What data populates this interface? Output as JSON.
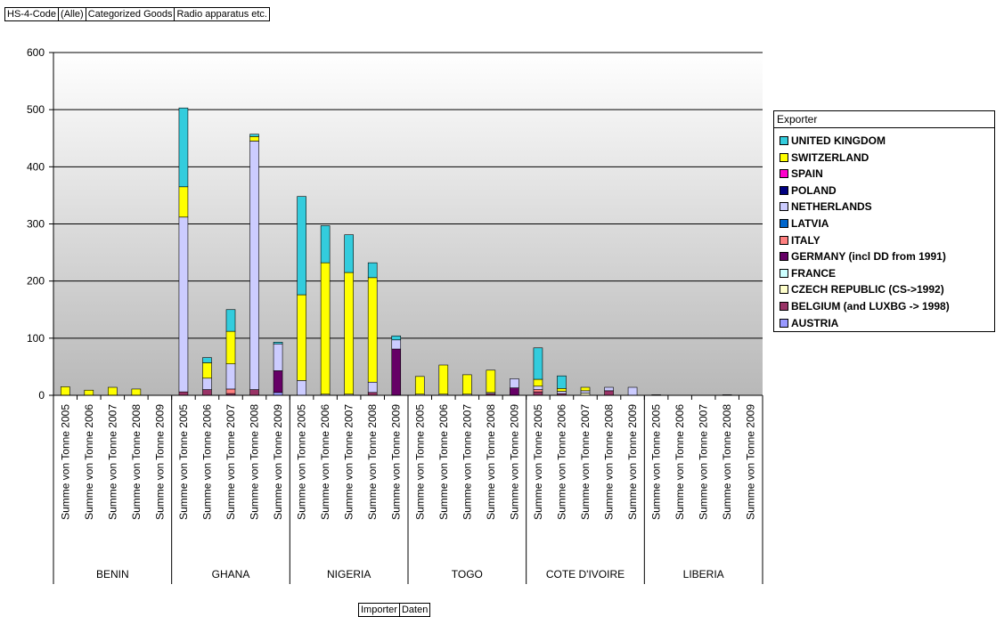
{
  "filters": [
    "HS-4-Code",
    "(Alle)",
    "Categorized Goods",
    "Radio apparatus etc."
  ],
  "bottom_buttons": [
    "Importer",
    "Daten"
  ],
  "legend": {
    "title": "Exporter",
    "items": [
      {
        "name": "UNITED KINGDOM",
        "color": "#33CCDD"
      },
      {
        "name": "SWITZERLAND",
        "color": "#FFFF00"
      },
      {
        "name": "SPAIN",
        "color": "#FF00CC"
      },
      {
        "name": "POLAND",
        "color": "#000080"
      },
      {
        "name": "NETHERLANDS",
        "color": "#CCCCFF"
      },
      {
        "name": "LATVIA",
        "color": "#0066CC"
      },
      {
        "name": "ITALY",
        "color": "#FF8080"
      },
      {
        "name": "GERMANY (incl DD from 1991)",
        "color": "#660066"
      },
      {
        "name": "FRANCE",
        "color": "#CCFFFF"
      },
      {
        "name": "CZECH REPUBLIC (CS->1992)",
        "color": "#FFFFCC"
      },
      {
        "name": "BELGIUM (and LUXBG -> 1998)",
        "color": "#993366"
      },
      {
        "name": "AUSTRIA",
        "color": "#9999FF"
      }
    ]
  },
  "chart_data": {
    "type": "bar",
    "stacked": true,
    "ylim": [
      0,
      600
    ],
    "yticks": [
      0,
      100,
      200,
      300,
      400,
      500,
      600
    ],
    "groups": [
      {
        "name": "BENIN",
        "labels": [
          "Summe von Tonne 2005",
          "Summe von Tonne 2006",
          "Summe von Tonne 2007",
          "Summe von Tonne 2008",
          "Summe von Tonne 2009"
        ]
      },
      {
        "name": "GHANA",
        "labels": [
          "Summe von Tonne 2005",
          "Summe von Tonne 2006",
          "Summe von Tonne 2007",
          "Summe von Tonne 2008",
          "Summe von Tonne 2009"
        ]
      },
      {
        "name": "NIGERIA",
        "labels": [
          "Summe von Tonne 2005",
          "Summe von Tonne 2006",
          "Summe von Tonne 2007",
          "Summe von Tonne 2008",
          "Summe von Tonne 2009"
        ]
      },
      {
        "name": "TOGO",
        "labels": [
          "Summe von Tonne 2005",
          "Summe von Tonne 2006",
          "Summe von Tonne 2007",
          "Summe von Tonne 2008",
          "Summe von Tonne 2009"
        ]
      },
      {
        "name": "COTE D'IVOIRE",
        "labels": [
          "Summe von Tonne 2005",
          "Summe von Tonne 2006",
          "Summe von Tonne 2007",
          "Summe von Tonne 2008",
          "Summe von Tonne 2009"
        ]
      },
      {
        "name": "LIBERIA",
        "labels": [
          "Summe von Tonne 2005",
          "Summe von Tonne 2006",
          "Summe von Tonne 2007",
          "Summe von Tonne 2008",
          "Summe von Tonne 2009"
        ]
      }
    ],
    "stack_order": [
      "AUSTRIA",
      "BELGIUM (and LUXBG -> 1998)",
      "CZECH REPUBLIC (CS->1992)",
      "FRANCE",
      "GERMANY (incl DD from 1991)",
      "ITALY",
      "LATVIA",
      "NETHERLANDS",
      "POLAND",
      "SPAIN",
      "SWITZERLAND",
      "UNITED KINGDOM"
    ],
    "bars": [
      {
        "AUSTRIA": 0,
        "BELGIUM (and LUXBG -> 1998)": 0,
        "CZECH REPUBLIC (CS->1992)": 0,
        "FRANCE": 0,
        "GERMANY (incl DD from 1991)": 0,
        "ITALY": 0,
        "LATVIA": 0,
        "NETHERLANDS": 0,
        "POLAND": 0,
        "SPAIN": 0,
        "SWITZERLAND": 15,
        "UNITED KINGDOM": 0
      },
      {
        "AUSTRIA": 0,
        "BELGIUM (and LUXBG -> 1998)": 0,
        "CZECH REPUBLIC (CS->1992)": 0,
        "FRANCE": 0,
        "GERMANY (incl DD from 1991)": 0,
        "ITALY": 0,
        "LATVIA": 0,
        "NETHERLANDS": 0,
        "POLAND": 0,
        "SPAIN": 0,
        "SWITZERLAND": 9,
        "UNITED KINGDOM": 0
      },
      {
        "AUSTRIA": 0,
        "BELGIUM (and LUXBG -> 1998)": 0,
        "CZECH REPUBLIC (CS->1992)": 0,
        "FRANCE": 0,
        "GERMANY (incl DD from 1991)": 0,
        "ITALY": 0,
        "LATVIA": 0,
        "NETHERLANDS": 0,
        "POLAND": 0,
        "SPAIN": 0,
        "SWITZERLAND": 14,
        "UNITED KINGDOM": 0
      },
      {
        "AUSTRIA": 0,
        "BELGIUM (and LUXBG -> 1998)": 0,
        "CZECH REPUBLIC (CS->1992)": 0,
        "FRANCE": 0,
        "GERMANY (incl DD from 1991)": 0,
        "ITALY": 0,
        "LATVIA": 0,
        "NETHERLANDS": 0,
        "POLAND": 0,
        "SPAIN": 0,
        "SWITZERLAND": 11,
        "UNITED KINGDOM": 0
      },
      {
        "AUSTRIA": 0,
        "BELGIUM (and LUXBG -> 1998)": 0,
        "CZECH REPUBLIC (CS->1992)": 0,
        "FRANCE": 0,
        "GERMANY (incl DD from 1991)": 0,
        "ITALY": 0,
        "LATVIA": 0,
        "NETHERLANDS": 0,
        "POLAND": 0,
        "SPAIN": 0,
        "SWITZERLAND": 0,
        "UNITED KINGDOM": 0
      },
      {
        "AUSTRIA": 0,
        "BELGIUM (and LUXBG -> 1998)": 6,
        "CZECH REPUBLIC (CS->1992)": 0,
        "FRANCE": 0,
        "GERMANY (incl DD from 1991)": 0,
        "ITALY": 0,
        "LATVIA": 0,
        "NETHERLANDS": 306,
        "POLAND": 0,
        "SPAIN": 0,
        "SWITZERLAND": 53,
        "UNITED KINGDOM": 138
      },
      {
        "AUSTRIA": 0,
        "BELGIUM (and LUXBG -> 1998)": 10,
        "CZECH REPUBLIC (CS->1992)": 0,
        "FRANCE": 0,
        "GERMANY (incl DD from 1991)": 0,
        "ITALY": 0,
        "LATVIA": 0,
        "NETHERLANDS": 20,
        "POLAND": 0,
        "SPAIN": 0,
        "SWITZERLAND": 27,
        "UNITED KINGDOM": 9
      },
      {
        "AUSTRIA": 0,
        "BELGIUM (and LUXBG -> 1998)": 3,
        "CZECH REPUBLIC (CS->1992)": 0,
        "FRANCE": 0,
        "GERMANY (incl DD from 1991)": 0,
        "ITALY": 8,
        "LATVIA": 0,
        "NETHERLANDS": 44,
        "POLAND": 0,
        "SPAIN": 0,
        "SWITZERLAND": 57,
        "UNITED KINGDOM": 38
      },
      {
        "AUSTRIA": 0,
        "BELGIUM (and LUXBG -> 1998)": 10,
        "CZECH REPUBLIC (CS->1992)": 0,
        "FRANCE": 0,
        "GERMANY (incl DD from 1991)": 0,
        "ITALY": 0,
        "LATVIA": 0,
        "NETHERLANDS": 435,
        "POLAND": 0,
        "SPAIN": 0,
        "SWITZERLAND": 8,
        "UNITED KINGDOM": 4
      },
      {
        "AUSTRIA": 5,
        "BELGIUM (and LUXBG -> 1998)": 0,
        "CZECH REPUBLIC (CS->1992)": 0,
        "FRANCE": 0,
        "GERMANY (incl DD from 1991)": 38,
        "ITALY": 0,
        "LATVIA": 0,
        "NETHERLANDS": 47,
        "POLAND": 0,
        "SPAIN": 0,
        "SWITZERLAND": 0,
        "UNITED KINGDOM": 3
      },
      {
        "AUSTRIA": 0,
        "BELGIUM (and LUXBG -> 1998)": 0,
        "CZECH REPUBLIC (CS->1992)": 0,
        "FRANCE": 0,
        "GERMANY (incl DD from 1991)": 0,
        "ITALY": 0,
        "LATVIA": 0,
        "NETHERLANDS": 26,
        "POLAND": 0,
        "SPAIN": 0,
        "SWITZERLAND": 150,
        "UNITED KINGDOM": 172
      },
      {
        "AUSTRIA": 0,
        "BELGIUM (and LUXBG -> 1998)": 0,
        "CZECH REPUBLIC (CS->1992)": 0,
        "FRANCE": 0,
        "GERMANY (incl DD from 1991)": 0,
        "ITALY": 0,
        "LATVIA": 0,
        "NETHERLANDS": 2,
        "POLAND": 0,
        "SPAIN": 0,
        "SWITZERLAND": 230,
        "UNITED KINGDOM": 65
      },
      {
        "AUSTRIA": 0,
        "BELGIUM (and LUXBG -> 1998)": 0,
        "CZECH REPUBLIC (CS->1992)": 0,
        "FRANCE": 0,
        "GERMANY (incl DD from 1991)": 0,
        "ITALY": 0,
        "LATVIA": 0,
        "NETHERLANDS": 2,
        "POLAND": 0,
        "SPAIN": 0,
        "SWITZERLAND": 213,
        "UNITED KINGDOM": 66
      },
      {
        "AUSTRIA": 0,
        "BELGIUM (and LUXBG -> 1998)": 5,
        "CZECH REPUBLIC (CS->1992)": 0,
        "FRANCE": 0,
        "GERMANY (incl DD from 1991)": 0,
        "ITALY": 0,
        "LATVIA": 0,
        "NETHERLANDS": 18,
        "POLAND": 0,
        "SPAIN": 0,
        "SWITZERLAND": 183,
        "UNITED KINGDOM": 26
      },
      {
        "AUSTRIA": 0,
        "BELGIUM (and LUXBG -> 1998)": 0,
        "CZECH REPUBLIC (CS->1992)": 0,
        "FRANCE": 0,
        "GERMANY (incl DD from 1991)": 81,
        "ITALY": 0,
        "LATVIA": 0,
        "NETHERLANDS": 16,
        "POLAND": 0,
        "SPAIN": 0,
        "SWITZERLAND": 0,
        "UNITED KINGDOM": 7
      },
      {
        "AUSTRIA": 0,
        "BELGIUM (and LUXBG -> 1998)": 0,
        "CZECH REPUBLIC (CS->1992)": 0,
        "FRANCE": 0,
        "GERMANY (incl DD from 1991)": 0,
        "ITALY": 0,
        "LATVIA": 0,
        "NETHERLANDS": 2,
        "POLAND": 0,
        "SPAIN": 0,
        "SWITZERLAND": 31,
        "UNITED KINGDOM": 0
      },
      {
        "AUSTRIA": 0,
        "BELGIUM (and LUXBG -> 1998)": 0,
        "CZECH REPUBLIC (CS->1992)": 0,
        "FRANCE": 0,
        "GERMANY (incl DD from 1991)": 0,
        "ITALY": 0,
        "LATVIA": 0,
        "NETHERLANDS": 2,
        "POLAND": 0,
        "SPAIN": 0,
        "SWITZERLAND": 51,
        "UNITED KINGDOM": 0
      },
      {
        "AUSTRIA": 0,
        "BELGIUM (and LUXBG -> 1998)": 0,
        "CZECH REPUBLIC (CS->1992)": 0,
        "FRANCE": 0,
        "GERMANY (incl DD from 1991)": 0,
        "ITALY": 0,
        "LATVIA": 0,
        "NETHERLANDS": 2,
        "POLAND": 0,
        "SPAIN": 0,
        "SWITZERLAND": 34,
        "UNITED KINGDOM": 0
      },
      {
        "AUSTRIA": 0,
        "BELGIUM (and LUXBG -> 1998)": 3,
        "CZECH REPUBLIC (CS->1992)": 0,
        "FRANCE": 0,
        "GERMANY (incl DD from 1991)": 0,
        "ITALY": 0,
        "LATVIA": 0,
        "NETHERLANDS": 2,
        "POLAND": 0,
        "SPAIN": 0,
        "SWITZERLAND": 39,
        "UNITED KINGDOM": 0
      },
      {
        "AUSTRIA": 0,
        "BELGIUM (and LUXBG -> 1998)": 0,
        "CZECH REPUBLIC (CS->1992)": 0,
        "FRANCE": 0,
        "GERMANY (incl DD from 1991)": 13,
        "ITALY": 0,
        "LATVIA": 0,
        "NETHERLANDS": 16,
        "POLAND": 0,
        "SPAIN": 0,
        "SWITZERLAND": 0,
        "UNITED KINGDOM": 0
      },
      {
        "AUSTRIA": 0,
        "BELGIUM (and LUXBG -> 1998)": 6,
        "CZECH REPUBLIC (CS->1992)": 0,
        "FRANCE": 0,
        "GERMANY (incl DD from 1991)": 0,
        "ITALY": 4,
        "LATVIA": 0,
        "NETHERLANDS": 6,
        "POLAND": 0,
        "SPAIN": 0,
        "SWITZERLAND": 12,
        "UNITED KINGDOM": 55
      },
      {
        "AUSTRIA": 0,
        "BELGIUM (and LUXBG -> 1998)": 3,
        "CZECH REPUBLIC (CS->1992)": 0,
        "FRANCE": 0,
        "GERMANY (incl DD from 1991)": 0,
        "ITALY": 0,
        "LATVIA": 0,
        "NETHERLANDS": 4,
        "POLAND": 0,
        "SPAIN": 0,
        "SWITZERLAND": 5,
        "UNITED KINGDOM": 22
      },
      {
        "AUSTRIA": 0,
        "BELGIUM (and LUXBG -> 1998)": 0,
        "CZECH REPUBLIC (CS->1992)": 4,
        "FRANCE": 0,
        "GERMANY (incl DD from 1991)": 0,
        "ITALY": 0,
        "LATVIA": 0,
        "NETHERLANDS": 4,
        "POLAND": 0,
        "SPAIN": 0,
        "SWITZERLAND": 6,
        "UNITED KINGDOM": 0
      },
      {
        "AUSTRIA": 0,
        "BELGIUM (and LUXBG -> 1998)": 8,
        "CZECH REPUBLIC (CS->1992)": 0,
        "FRANCE": 0,
        "GERMANY (incl DD from 1991)": 0,
        "ITALY": 0,
        "LATVIA": 0,
        "NETHERLANDS": 6,
        "POLAND": 0,
        "SPAIN": 0,
        "SWITZERLAND": 0,
        "UNITED KINGDOM": 0
      },
      {
        "AUSTRIA": 0,
        "BELGIUM (and LUXBG -> 1998)": 0,
        "CZECH REPUBLIC (CS->1992)": 0,
        "FRANCE": 0,
        "GERMANY (incl DD from 1991)": 0,
        "ITALY": 0,
        "LATVIA": 0,
        "NETHERLANDS": 14,
        "POLAND": 0,
        "SPAIN": 0,
        "SWITZERLAND": 0,
        "UNITED KINGDOM": 0
      },
      {
        "AUSTRIA": 0,
        "BELGIUM (and LUXBG -> 1998)": 0,
        "CZECH REPUBLIC (CS->1992)": 0,
        "FRANCE": 0,
        "GERMANY (incl DD from 1991)": 0,
        "ITALY": 0,
        "LATVIA": 0,
        "NETHERLANDS": 1,
        "POLAND": 0,
        "SPAIN": 0,
        "SWITZERLAND": 0,
        "UNITED KINGDOM": 0
      },
      {
        "AUSTRIA": 0,
        "BELGIUM (and LUXBG -> 1998)": 0,
        "CZECH REPUBLIC (CS->1992)": 0,
        "FRANCE": 0,
        "GERMANY (incl DD from 1991)": 0,
        "ITALY": 0,
        "LATVIA": 0,
        "NETHERLANDS": 0,
        "POLAND": 0,
        "SPAIN": 0,
        "SWITZERLAND": 0,
        "UNITED KINGDOM": 0
      },
      {
        "AUSTRIA": 0,
        "BELGIUM (and LUXBG -> 1998)": 0,
        "CZECH REPUBLIC (CS->1992)": 0,
        "FRANCE": 0,
        "GERMANY (incl DD from 1991)": 0,
        "ITALY": 0,
        "LATVIA": 0,
        "NETHERLANDS": 0,
        "POLAND": 0,
        "SPAIN": 0,
        "SWITZERLAND": 0,
        "UNITED KINGDOM": 0
      },
      {
        "AUSTRIA": 0,
        "BELGIUM (and LUXBG -> 1998)": 0,
        "CZECH REPUBLIC (CS->1992)": 0,
        "FRANCE": 0,
        "GERMANY (incl DD from 1991)": 0,
        "ITALY": 0,
        "LATVIA": 0,
        "NETHERLANDS": 1,
        "POLAND": 0,
        "SPAIN": 0,
        "SWITZERLAND": 0,
        "UNITED KINGDOM": 0
      },
      {
        "AUSTRIA": 0,
        "BELGIUM (and LUXBG -> 1998)": 0,
        "CZECH REPUBLIC (CS->1992)": 0,
        "FRANCE": 0,
        "GERMANY (incl DD from 1991)": 0,
        "ITALY": 0,
        "LATVIA": 0,
        "NETHERLANDS": 0,
        "POLAND": 0,
        "SPAIN": 0,
        "SWITZERLAND": 0,
        "UNITED KINGDOM": 0
      }
    ]
  }
}
